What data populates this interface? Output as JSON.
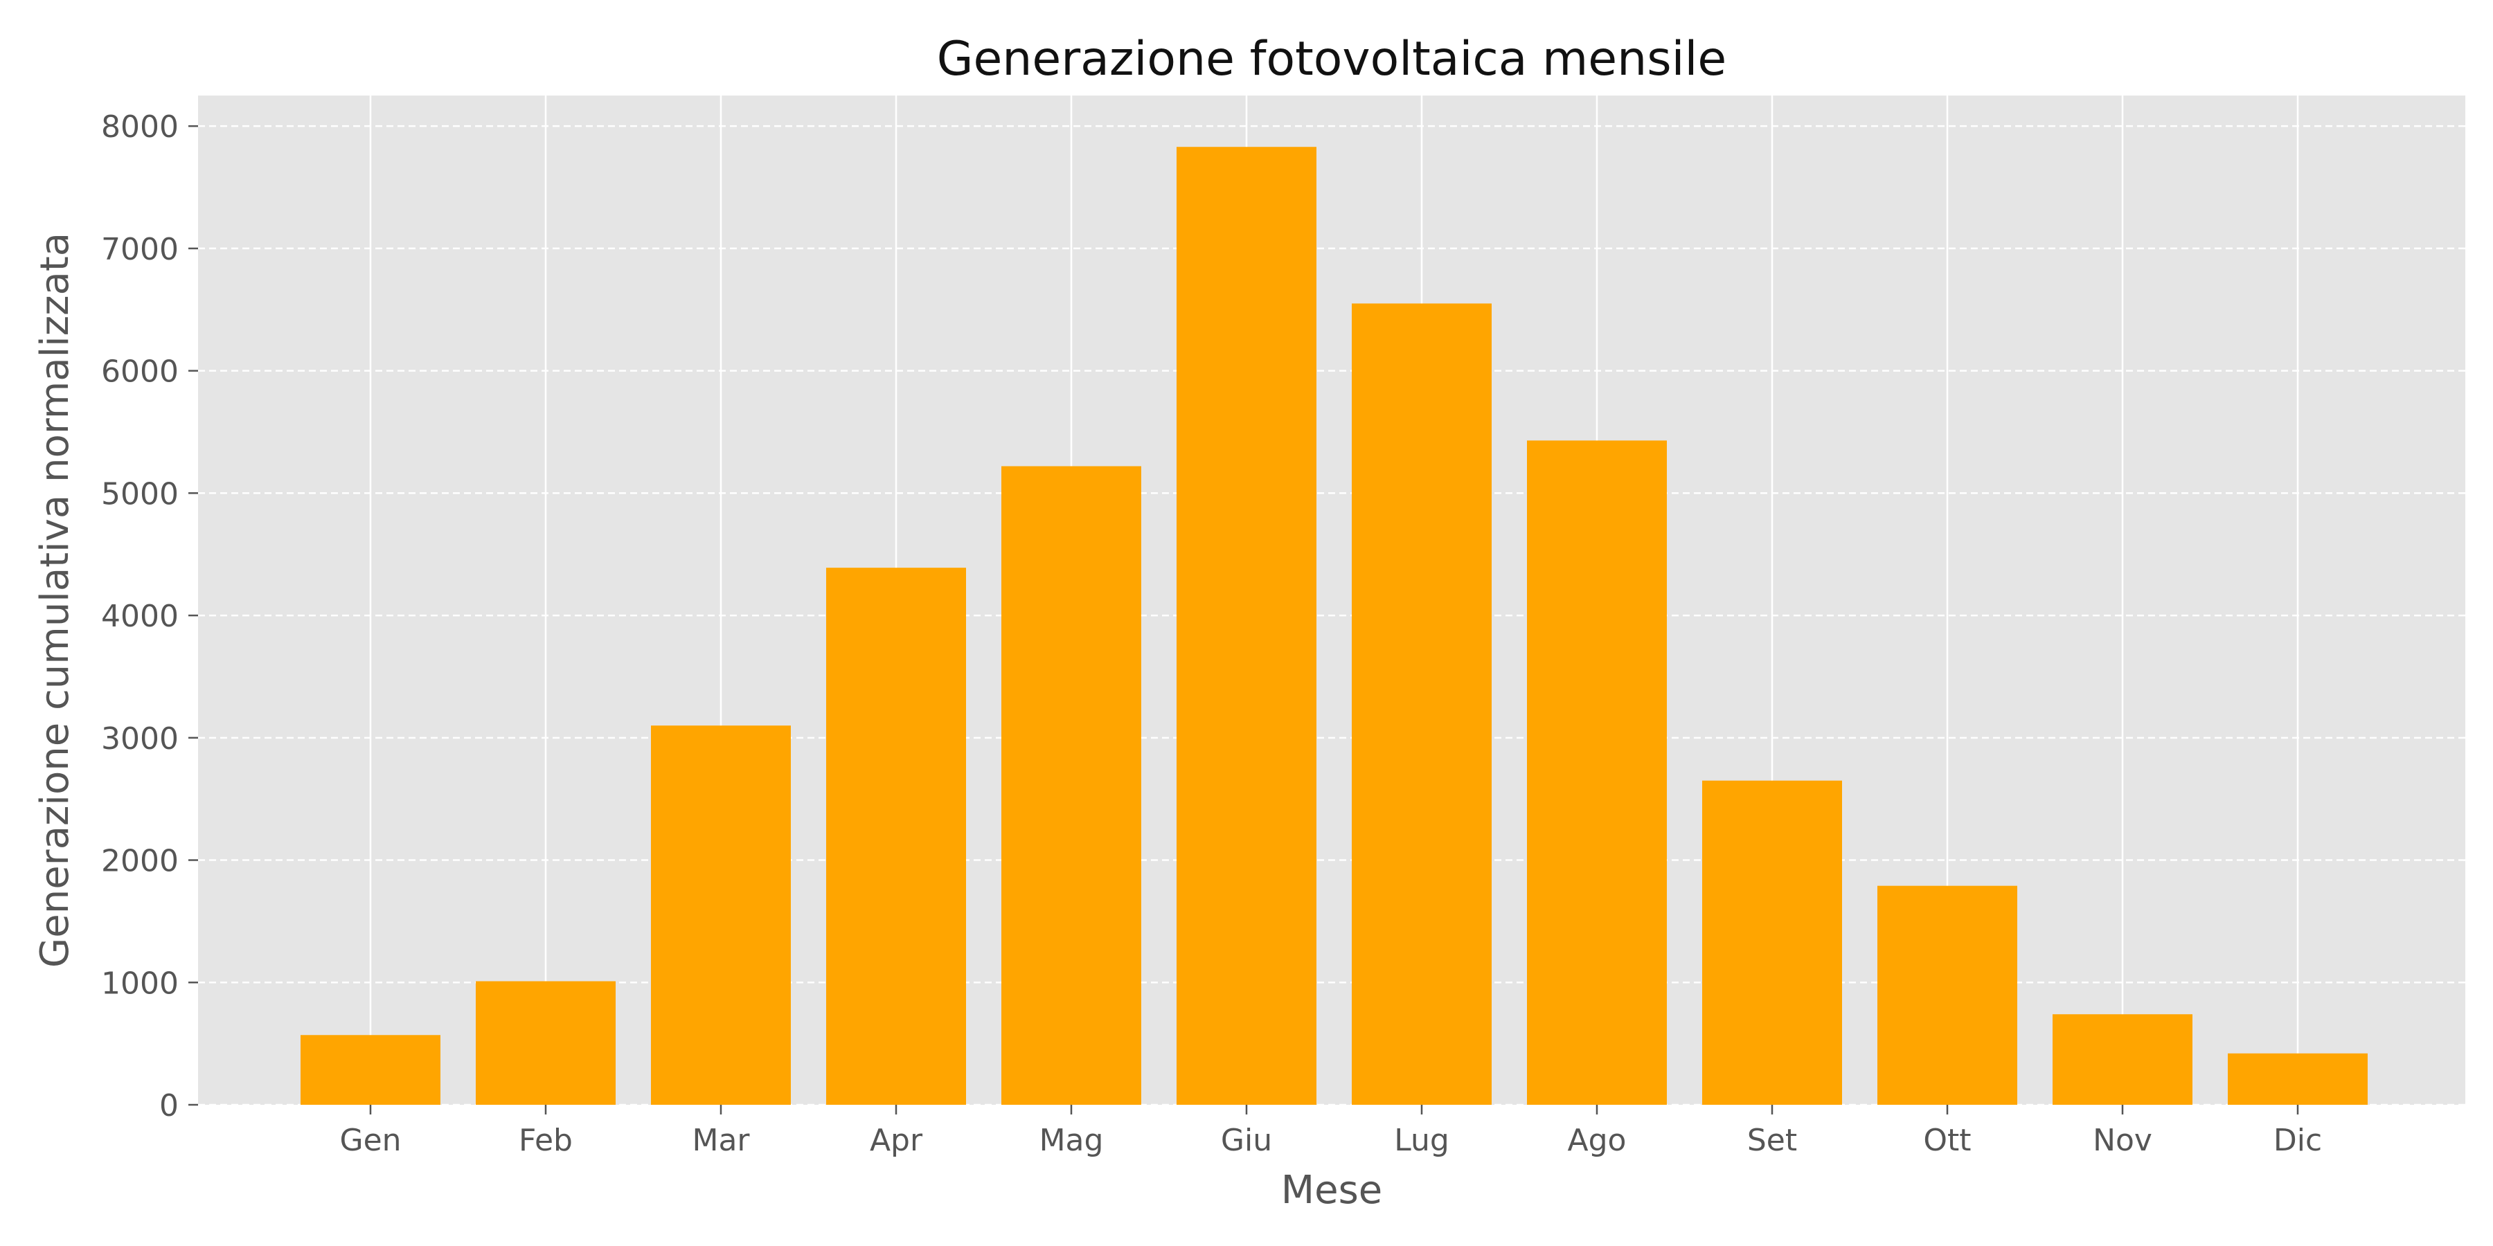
{
  "chart_data": {
    "type": "bar",
    "title": "Generazione fotovoltaica mensile",
    "xlabel": "Mese",
    "ylabel": "Generazione cumulativa normalizzata",
    "categories": [
      "Gen",
      "Feb",
      "Mar",
      "Apr",
      "Mag",
      "Giu",
      "Lug",
      "Ago",
      "Set",
      "Ott",
      "Nov",
      "Dic"
    ],
    "values": [
      570,
      1010,
      3100,
      4390,
      5220,
      7830,
      6550,
      5430,
      2650,
      1790,
      740,
      420
    ],
    "ylim": [
      0,
      8250
    ],
    "yticks": [
      0,
      1000,
      2000,
      3000,
      4000,
      5000,
      6000,
      7000,
      8000
    ],
    "grid": true,
    "colors": {
      "bar": "#ffa500",
      "plot_background": "#e5e5e5",
      "grid": "#ffffff"
    }
  }
}
